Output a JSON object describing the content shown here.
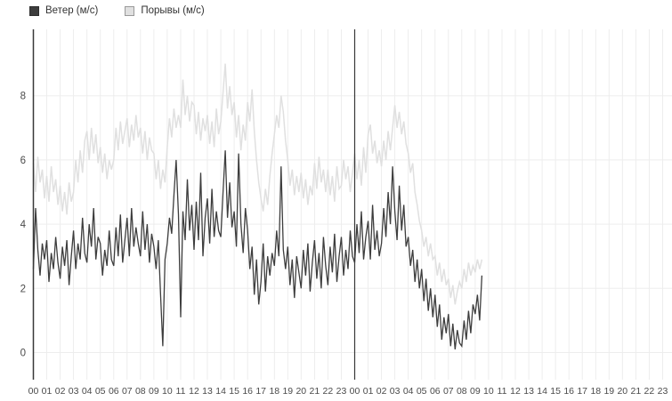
{
  "legend": {
    "items": [
      {
        "id": "wind",
        "label": "Ветер (м/с)"
      },
      {
        "id": "gusts",
        "label": "Порывы (м/с)"
      }
    ]
  },
  "colors": {
    "wind_series": "#3d3d3d",
    "gusts_series": "#e0e0e0",
    "wind_swatch_border": "#2e2e2e",
    "gusts_swatch_border": "#999999",
    "grid_line": "#ededed",
    "axis_line": "#383838",
    "day_separator": "#383838",
    "tick_label": "#4a4a4a",
    "background": "#ffffff"
  },
  "chart_data": {
    "type": "line",
    "title": "",
    "xlabel": "",
    "ylabel": "",
    "legend_position": "top-left",
    "grid": true,
    "step_minutes": 10,
    "hours_total": 48,
    "day_separator_hour": 24,
    "y_axis": {
      "min": 0,
      "max": 10,
      "ticks": [
        0,
        2,
        4,
        6,
        8
      ]
    },
    "x_axis": {
      "tick_labels": [
        "00",
        "01",
        "02",
        "03",
        "04",
        "05",
        "06",
        "07",
        "08",
        "09",
        "10",
        "11",
        "12",
        "13",
        "14",
        "15",
        "16",
        "17",
        "18",
        "19",
        "20",
        "21",
        "22",
        "23",
        "00",
        "01",
        "02",
        "03",
        "04",
        "05",
        "06",
        "07",
        "08",
        "09",
        "10",
        "11",
        "12",
        "13",
        "14",
        "15",
        "16",
        "17",
        "18",
        "19",
        "20",
        "21",
        "22",
        "23"
      ]
    },
    "series": [
      {
        "name": "Ветер (м/с)",
        "color": "#3d3d3d",
        "values": [
          2.6,
          4.5,
          3.2,
          2.4,
          3.4,
          2.9,
          3.5,
          2.2,
          3.1,
          2.6,
          3.6,
          2.8,
          2.3,
          3.3,
          2.7,
          3.5,
          2.1,
          3.0,
          3.8,
          2.6,
          3.4,
          2.9,
          4.2,
          3.1,
          2.8,
          4.0,
          3.3,
          4.5,
          2.9,
          3.6,
          3.4,
          2.4,
          3.2,
          2.7,
          3.8,
          2.9,
          2.7,
          3.9,
          3.0,
          4.3,
          2.8,
          3.5,
          4.2,
          3.0,
          4.5,
          3.3,
          3.9,
          3.4,
          3.0,
          4.4,
          3.2,
          4.0,
          2.8,
          3.7,
          3.3,
          2.6,
          3.5,
          1.8,
          0.2,
          2.9,
          3.4,
          4.2,
          3.7,
          4.9,
          6.0,
          4.3,
          1.1,
          4.4,
          3.5,
          5.4,
          3.8,
          4.6,
          3.2,
          4.7,
          3.5,
          5.6,
          3.0,
          4.2,
          4.8,
          3.4,
          5.1,
          3.6,
          4.4,
          3.8,
          3.6,
          5.0,
          6.3,
          4.2,
          5.3,
          3.9,
          4.4,
          3.3,
          6.2,
          4.0,
          3.1,
          4.5,
          3.8,
          2.6,
          3.3,
          1.8,
          2.9,
          1.5,
          2.2,
          3.4,
          1.9,
          3.0,
          2.4,
          3.1,
          2.7,
          3.8,
          3.0,
          5.8,
          3.2,
          2.6,
          3.3,
          2.1,
          2.9,
          1.7,
          3.0,
          2.5,
          2.0,
          3.2,
          2.4,
          3.4,
          1.9,
          2.8,
          3.5,
          2.3,
          3.1,
          2.0,
          3.6,
          2.7,
          2.1,
          3.3,
          2.5,
          3.7,
          2.2,
          3.0,
          3.6,
          2.4,
          3.2,
          2.6,
          3.8,
          3.0,
          2.8,
          4.0,
          3.1,
          4.4,
          2.9,
          3.6,
          4.1,
          2.9,
          4.6,
          3.2,
          3.8,
          3.0,
          3.4,
          4.5,
          3.6,
          5.0,
          4.0,
          5.8,
          4.4,
          3.5,
          5.2,
          3.8,
          4.6,
          3.3,
          3.6,
          2.7,
          3.2,
          2.2,
          2.9,
          2.0,
          2.6,
          1.6,
          2.3,
          1.3,
          2.0,
          1.1,
          1.8,
          0.8,
          1.5,
          0.4,
          1.1,
          0.6,
          1.2,
          0.2,
          0.9,
          0.1,
          0.7,
          0.3,
          0.2,
          1.0,
          0.4,
          1.3,
          0.6,
          1.5,
          1.2,
          1.8,
          1.0,
          2.4
        ]
      },
      {
        "name": "Порывы (м/с)",
        "color": "#e0e0e0",
        "values": [
          5.9,
          5.0,
          6.1,
          5.3,
          5.7,
          4.8,
          5.5,
          4.7,
          5.8,
          5.0,
          5.4,
          4.6,
          5.2,
          4.4,
          5.0,
          4.3,
          5.3,
          4.7,
          5.0,
          6.0,
          5.3,
          6.3,
          5.6,
          6.6,
          6.9,
          6.0,
          7.0,
          6.2,
          6.8,
          5.9,
          6.4,
          5.6,
          6.2,
          5.4,
          6.0,
          5.7,
          6.0,
          7.0,
          6.3,
          7.2,
          6.5,
          6.9,
          7.3,
          6.4,
          7.1,
          6.6,
          7.4,
          6.7,
          7.0,
          6.2,
          6.9,
          6.0,
          6.7,
          6.3,
          6.2,
          5.4,
          6.0,
          5.1,
          5.7,
          5.3,
          6.4,
          7.3,
          6.7,
          7.6,
          7.0,
          7.4,
          7.0,
          8.5,
          7.4,
          8.0,
          7.2,
          7.8,
          7.7,
          6.8,
          7.5,
          6.6,
          7.3,
          6.9,
          7.4,
          6.5,
          7.2,
          6.4,
          7.6,
          6.8,
          7.2,
          8.1,
          9.0,
          7.6,
          8.3,
          7.4,
          7.8,
          6.7,
          7.4,
          6.3,
          7.1,
          6.6,
          7.8,
          7.2,
          8.2,
          6.9,
          6.0,
          5.3,
          4.8,
          4.4,
          5.1,
          4.6,
          5.5,
          6.2,
          6.8,
          7.4,
          7.0,
          8.0,
          7.5,
          6.6,
          6.0,
          5.2,
          5.7,
          4.9,
          5.5,
          5.0,
          5.6,
          4.8,
          5.4,
          4.6,
          5.2,
          4.9,
          5.9,
          5.1,
          6.1,
          5.3,
          5.7,
          5.0,
          5.7,
          4.9,
          5.5,
          4.7,
          5.8,
          5.1,
          5.2,
          6.0,
          5.4,
          5.8,
          5.0,
          5.6,
          6.2,
          5.4,
          6.0,
          5.2,
          6.4,
          5.6,
          6.8,
          7.1,
          6.2,
          6.6,
          5.9,
          6.3,
          5.8,
          6.6,
          6.0,
          6.9,
          6.3,
          7.0,
          7.7,
          7.0,
          7.5,
          6.8,
          7.2,
          6.5,
          6.2,
          5.6,
          5.9,
          5.0,
          4.6,
          4.1,
          3.8,
          3.3,
          3.6,
          3.0,
          3.4,
          2.9,
          3.0,
          2.4,
          2.8,
          2.2,
          2.6,
          2.1,
          2.3,
          1.7,
          2.1,
          1.5,
          1.9,
          2.2,
          2.0,
          2.6,
          2.2,
          2.8,
          2.4,
          2.7,
          2.5,
          2.9,
          2.6,
          2.9
        ]
      }
    ]
  }
}
